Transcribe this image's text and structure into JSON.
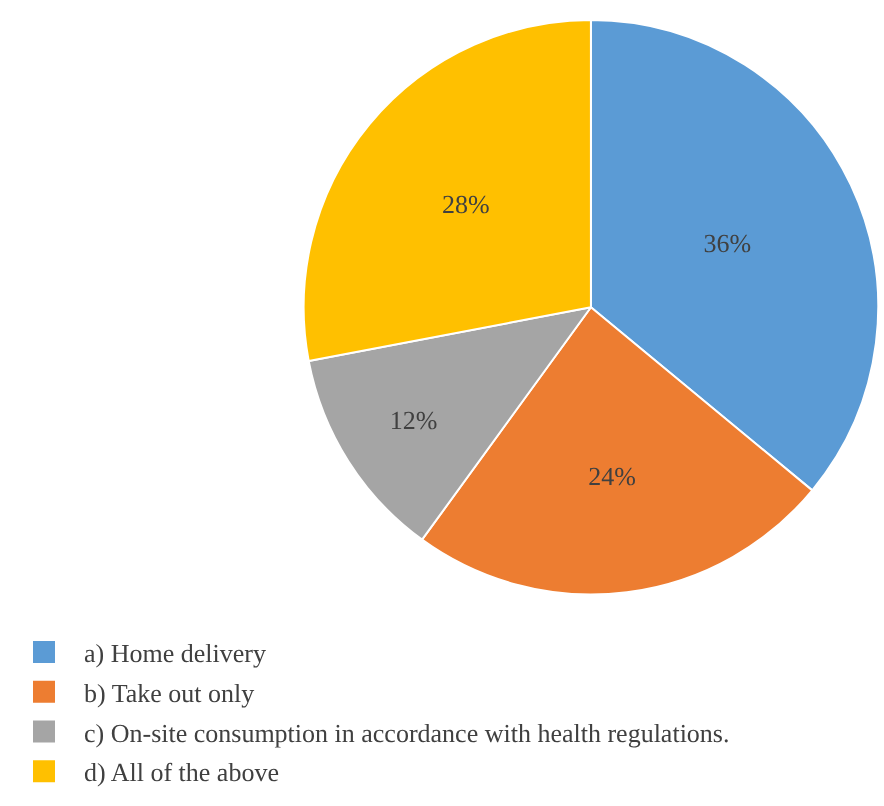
{
  "chart_data": {
    "type": "pie",
    "categories": [
      "a) Home delivery",
      "b) Take out only",
      "c) On-site consumption in accordance with health regulations.",
      "d) All of the above"
    ],
    "values": [
      36,
      24,
      12,
      28
    ],
    "value_labels": [
      "36%",
      "24%",
      "12%",
      "28%"
    ],
    "colors": [
      "#5b9bd5",
      "#ed7d31",
      "#a5a5a5",
      "#ffc000"
    ],
    "legend": "bottom left"
  }
}
